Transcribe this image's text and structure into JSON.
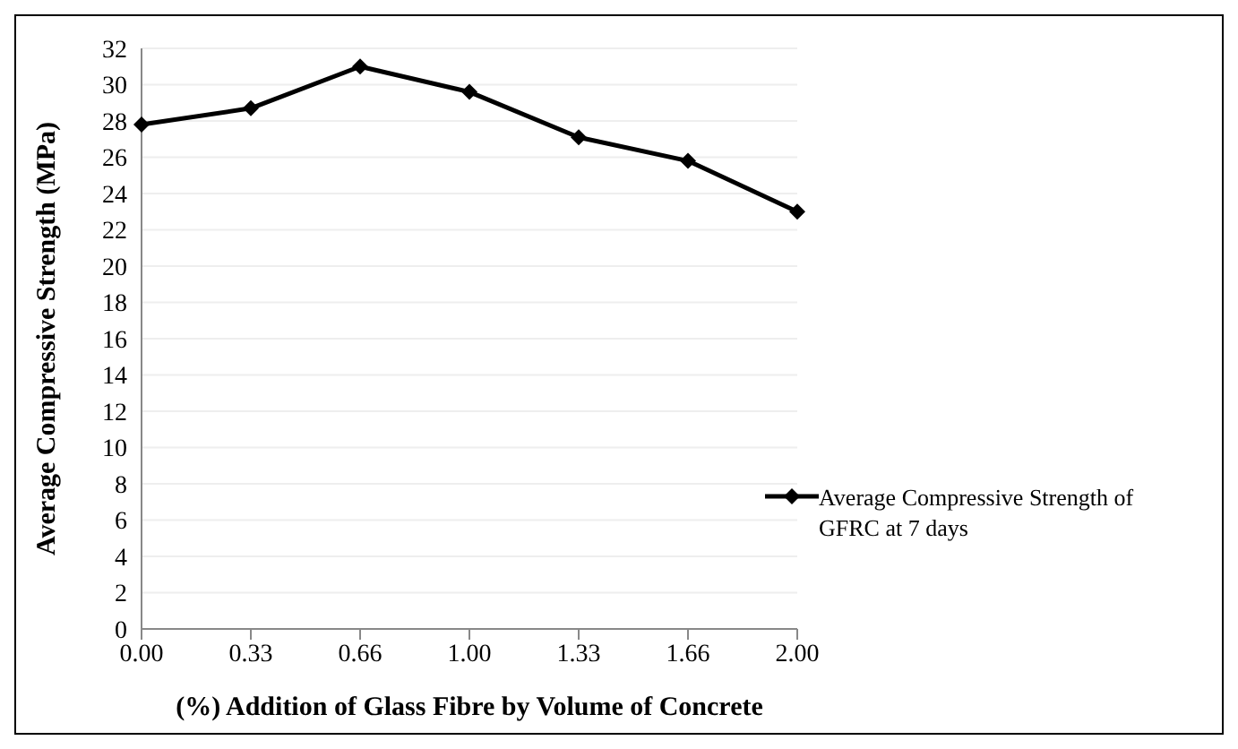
{
  "chart_data": {
    "type": "line",
    "xlabel": "(%) Addition of Glass Fibre by Volume of Concrete",
    "ylabel": "Average Compressive Strength (MPa)",
    "categories": [
      "0.00",
      "0.33",
      "0.66",
      "1.00",
      "1.33",
      "1.66",
      "2.00"
    ],
    "series": [
      {
        "name": "Average Compressive Strength of GFRC at 7 days",
        "color": "#000000",
        "values": [
          27.8,
          28.7,
          31.0,
          29.6,
          27.1,
          25.8,
          23.0
        ]
      }
    ],
    "ylim": [
      0,
      32
    ],
    "yticks": [
      0,
      2,
      4,
      6,
      8,
      10,
      12,
      14,
      16,
      18,
      20,
      22,
      24,
      26,
      28,
      30,
      32
    ],
    "grid": "y",
    "legend": "right",
    "marker": "diamond",
    "line_style": "solid"
  }
}
